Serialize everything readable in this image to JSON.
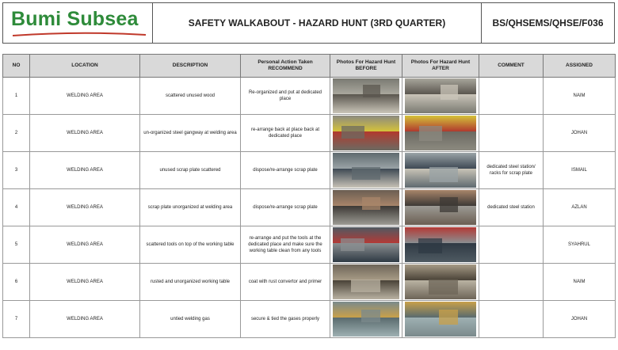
{
  "header": {
    "logo_text": "Bumi Subsea",
    "title": "SAFETY WALKABOUT - HAZARD HUNT (3RD QUARTER)",
    "doc_code": "BS/QHSEMS/QHSE/F036"
  },
  "colors": {
    "logo_green": "#2e8b3a",
    "logo_swoosh_red": "#c0392b",
    "header_fill": "#d9d9d9"
  },
  "columns": {
    "no": "NO",
    "location": "LOCATION",
    "description": "DESCRIPTION",
    "action": "Personal Action Taken RECOMMEND",
    "before": "Photos For Hazard Hunt BEFORE",
    "after": "Photos For Hazard Hunt AFTER",
    "comment": "COMMENT",
    "assigned": "ASSIGNED"
  },
  "rows": [
    {
      "no": "1",
      "location": "WELDING AREA",
      "description": "scattered unused wood",
      "action": "Re-organized and put at dedicated place",
      "comment": "",
      "assigned": "NAIM",
      "before_photo": "workshop-floor-before",
      "after_photo": "workshop-floor-after"
    },
    {
      "no": "2",
      "location": "WELDING AREA",
      "description": "un-organized steel gangway at welding area",
      "action": "re-arrange back at place back at dedicated place",
      "comment": "",
      "assigned": "JOHAN",
      "before_photo": "yellow-gangway-before",
      "after_photo": "gangway-rack-after"
    },
    {
      "no": "3",
      "location": "WELDING AREA",
      "description": "unused scrap plate scattered",
      "action": "dispose/re-arrange scrap plate",
      "comment": "dedicated steel station/ racks for scrap plate",
      "assigned": "ISMAIL",
      "before_photo": "scrap-plate-before",
      "after_photo": "scrap-rack-after"
    },
    {
      "no": "4",
      "location": "WELDING AREA",
      "description": "scrap plate unorganized at welding area",
      "action": "dispose/re-arrange scrap plate",
      "comment": "dedicated steel station",
      "assigned": "AZLAN",
      "before_photo": "scrap-pile-before",
      "after_photo": "steel-station-after"
    },
    {
      "no": "5",
      "location": "WELDING AREA",
      "description": "scattered tools on top of the working table",
      "action": "re-arrange and put the tools at the dedicated place and make sure the working table clean from any tools",
      "comment": "",
      "assigned": "SYAHRUL",
      "before_photo": "tools-table-before",
      "after_photo": "clean-table-after"
    },
    {
      "no": "6",
      "location": "WELDING AREA",
      "description": "rusted and unorganized working table",
      "action": "coat with rust convertor and primer",
      "comment": "",
      "assigned": "NAIM",
      "before_photo": "rusted-table-before",
      "after_photo": "primed-table-after"
    },
    {
      "no": "7",
      "location": "WELDING AREA",
      "description": "untied welding gas",
      "action": "secure & tied the gases properly",
      "comment": "",
      "assigned": "JOHAN",
      "before_photo": "gas-cylinders-before",
      "after_photo": "tied-cylinders-after"
    }
  ]
}
